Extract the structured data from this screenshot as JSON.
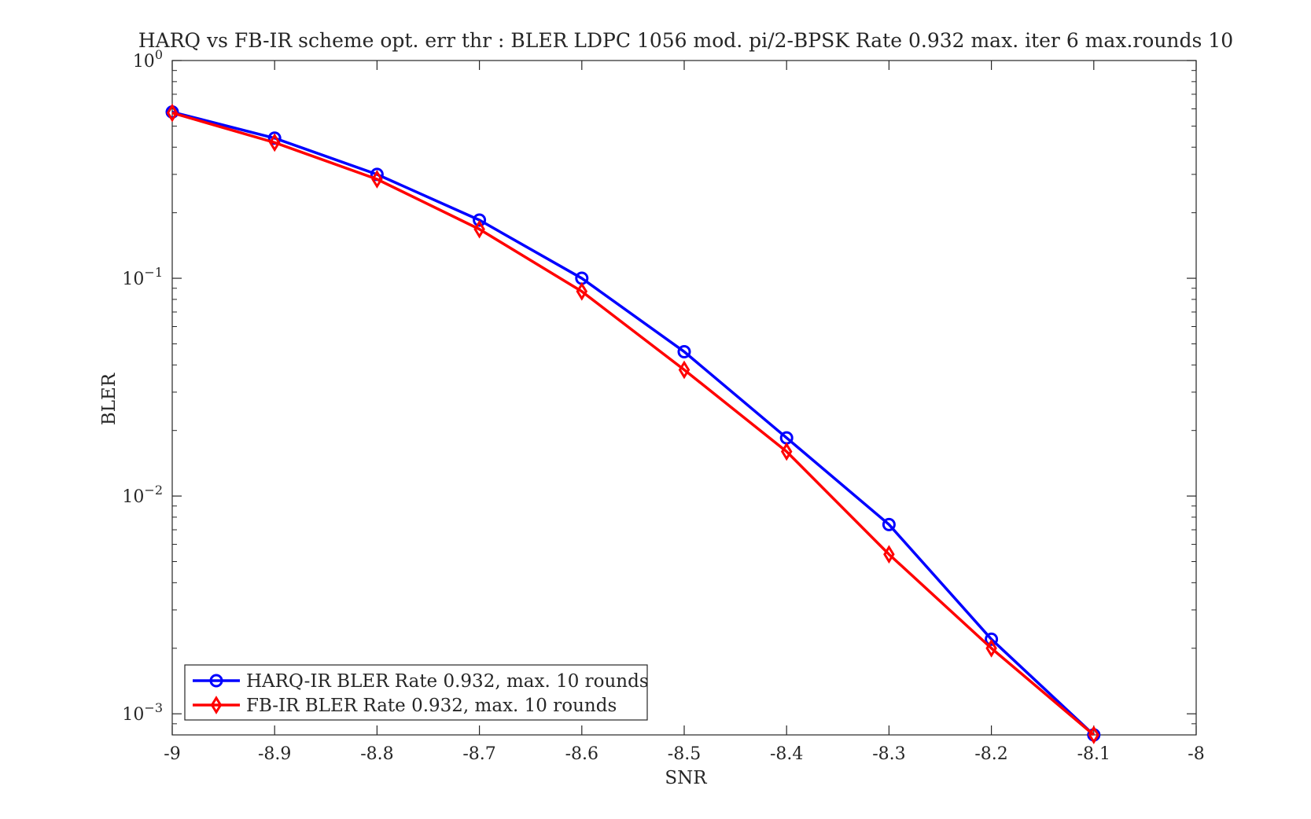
{
  "chart_data": {
    "type": "line",
    "title": "HARQ vs FB-IR scheme opt. err thr : BLER LDPC 1056 mod. pi/2-BPSK Rate 0.932 max. iter 6 max.rounds 10",
    "xlabel": "SNR",
    "ylabel": "BLER",
    "xlim": [
      -9,
      -8
    ],
    "ylim": [
      0.0008,
      1
    ],
    "yscale": "log",
    "x_ticks": [
      "-9",
      "-8.9",
      "-8.8",
      "-8.7",
      "-8.6",
      "-8.5",
      "-8.4",
      "-8.3",
      "-8.2",
      "-8.1",
      "-8"
    ],
    "y_ticks": [
      {
        "value": 1,
        "base": "10",
        "exp": "0"
      },
      {
        "value": 0.1,
        "base": "10",
        "exp": "−1"
      },
      {
        "value": 0.01,
        "base": "10",
        "exp": "−2"
      },
      {
        "value": 0.001,
        "base": "10",
        "exp": "−3"
      }
    ],
    "grid": false,
    "legend_position": "bottom-left",
    "x": [
      -9,
      -8.9,
      -8.8,
      -8.7,
      -8.6,
      -8.5,
      -8.4,
      -8.3,
      -8.2,
      -8.1
    ],
    "series": [
      {
        "name": "HARQ-IR BLER Rate 0.932, max. 10 rounds",
        "color": "#0000ff",
        "marker": "circle",
        "values": [
          0.58,
          0.44,
          0.3,
          0.185,
          0.1,
          0.046,
          0.0185,
          0.0074,
          0.0022,
          0.0008
        ]
      },
      {
        "name": "FB-IR BLER Rate 0.932, max. 10 rounds",
        "color": "#ff0000",
        "marker": "diamond",
        "values": [
          0.575,
          0.42,
          0.285,
          0.168,
          0.087,
          0.038,
          0.016,
          0.0054,
          0.002,
          0.0008
        ]
      }
    ]
  }
}
